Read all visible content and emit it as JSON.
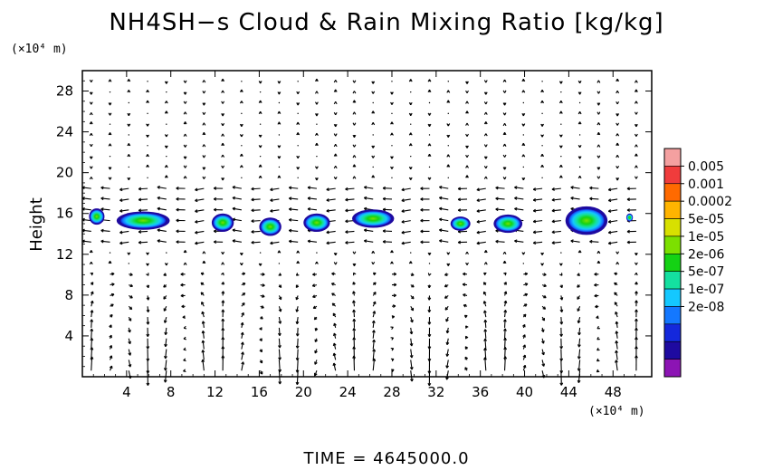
{
  "chart_data": {
    "type": "heatmap",
    "title": "NH4SH−s Cloud & Rain Mixing Ratio [kg/kg]",
    "xunit": "(×10⁴ m)",
    "yunit": "(×10⁴ m)",
    "ylabel": "Height",
    "footer": "TIME  =  4645000.0",
    "xlim": [
      0,
      51.5
    ],
    "ylim": [
      0,
      30
    ],
    "xticks": [
      4,
      8,
      12,
      16,
      20,
      24,
      28,
      32,
      36,
      40,
      44,
      48
    ],
    "yticks": [
      4,
      8,
      12,
      16,
      20,
      24,
      28
    ],
    "colorbar": {
      "labels": [
        "0.005",
        "0.001",
        "0.0002",
        "5e-05",
        "1e-05",
        "2e-06",
        "5e-07",
        "1e-07",
        "2e-08"
      ],
      "colors": [
        "#f4a0a0",
        "#f03c3c",
        "#ff6a00",
        "#ffb400",
        "#d8e000",
        "#7ce000",
        "#14d214",
        "#14e0a0",
        "#14c8ff",
        "#1478ff",
        "#1428dc",
        "#1e0aa0",
        "#8c14b4"
      ]
    },
    "clouds": [
      {
        "x": 1.3,
        "y": 15.7,
        "w": 1.4,
        "h": 1.6
      },
      {
        "x": 5.5,
        "y": 15.3,
        "w": 4.8,
        "h": 1.8
      },
      {
        "x": 12.7,
        "y": 15.1,
        "w": 2.0,
        "h": 1.8
      },
      {
        "x": 17.0,
        "y": 14.7,
        "w": 2.0,
        "h": 1.8
      },
      {
        "x": 21.2,
        "y": 15.1,
        "w": 2.4,
        "h": 1.8
      },
      {
        "x": 26.3,
        "y": 15.5,
        "w": 3.8,
        "h": 1.8
      },
      {
        "x": 34.2,
        "y": 15.0,
        "w": 1.8,
        "h": 1.4
      },
      {
        "x": 38.5,
        "y": 15.0,
        "w": 2.6,
        "h": 1.8
      },
      {
        "x": 45.6,
        "y": 15.3,
        "w": 3.8,
        "h": 2.8
      },
      {
        "x": 49.5,
        "y": 15.6,
        "w": 0.6,
        "h": 0.8
      }
    ]
  }
}
